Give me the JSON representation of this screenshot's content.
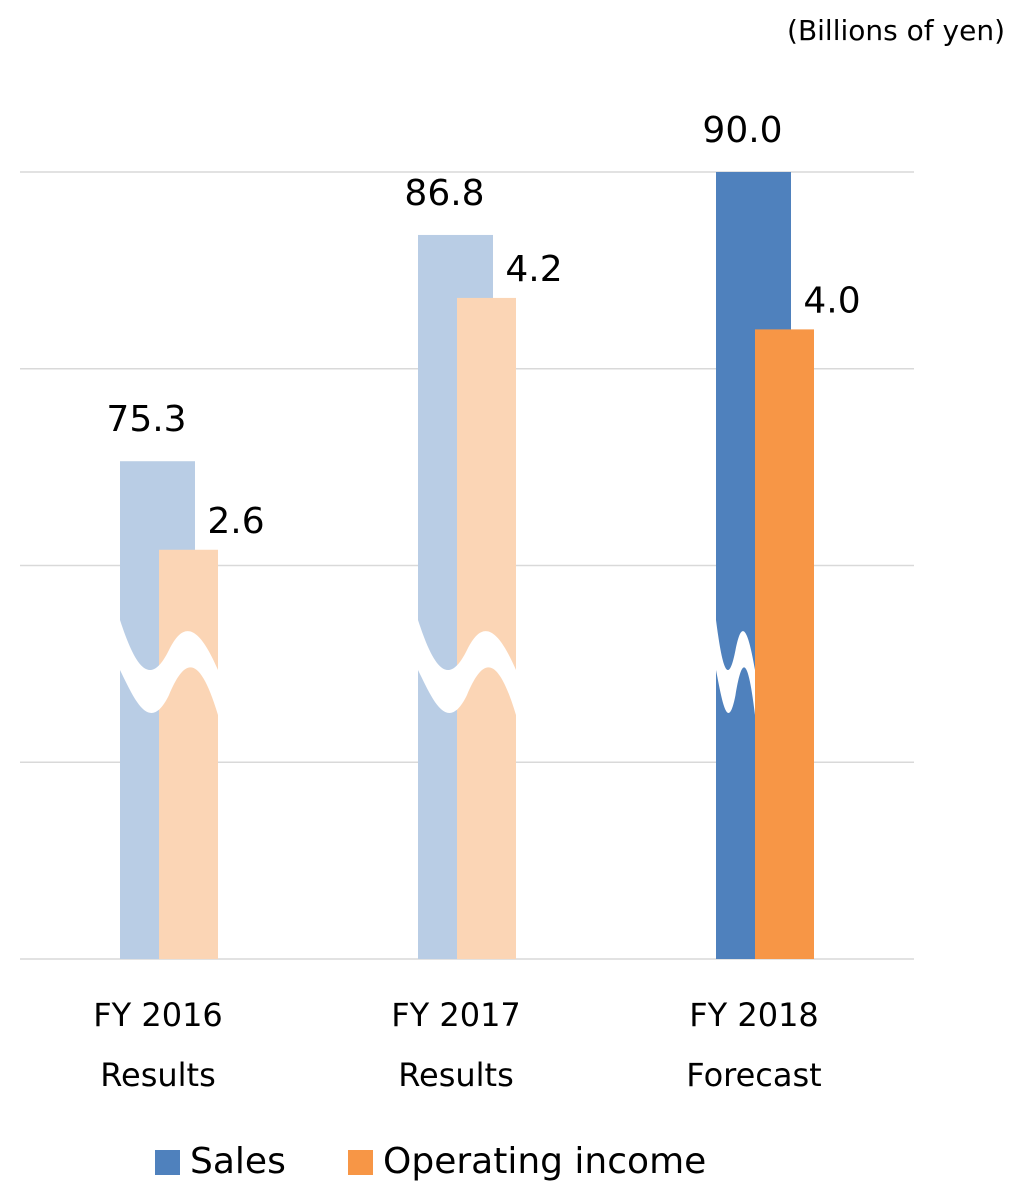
{
  "chart_data": {
    "type": "bar",
    "unit_label": "(Billions of yen)",
    "categories": [
      [
        "FY 2016",
        "Results"
      ],
      [
        "FY 2017",
        "Results"
      ],
      [
        "FY 2018",
        "Forecast"
      ]
    ],
    "series": [
      {
        "name": "Sales",
        "color": "#4f81bd",
        "point_colors": [
          "#b9cde5",
          "#b9cde5",
          "#4f81bd"
        ],
        "values": [
          75.3,
          86.8,
          90.0
        ],
        "value_labels": [
          "75.3",
          "86.8",
          "90.0"
        ]
      },
      {
        "name": "Operating income",
        "color": "#f79646",
        "point_colors": [
          "#fbd5b5",
          "#fbd5b5",
          "#f79646"
        ],
        "values": [
          2.6,
          4.2,
          4.0
        ],
        "value_labels": [
          "2.6",
          "4.2",
          "4.0"
        ],
        "axis": "y2"
      }
    ],
    "ylim": [
      50,
      90
    ],
    "y2lim": [
      0,
      5
    ],
    "grid": true,
    "axis_break": true
  }
}
